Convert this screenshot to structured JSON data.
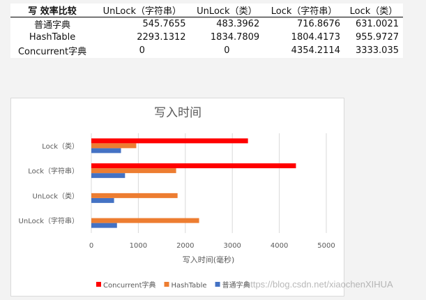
{
  "table": {
    "header": [
      "写 效率比较",
      "UnLock（字符串）",
      "UnLock（类）",
      "Lock（字符串）",
      "Lock（类）"
    ],
    "rows": [
      [
        "普通字典",
        "545.7655",
        "483.3962",
        "716.8676",
        "631.0021"
      ],
      [
        "HashTable",
        "2293.1312",
        "1834.7809",
        "1804.4173",
        "955.9727"
      ],
      [
        "Concurrent字典",
        "0",
        "0",
        "4354.2114",
        "3333.035"
      ]
    ]
  },
  "chart_data": {
    "type": "bar",
    "orientation": "horizontal",
    "title": "写入时间",
    "xlabel": "写入时间(毫秒)",
    "ylabel": "",
    "categories": [
      "UnLock（字符串）",
      "UnLock（类）",
      "Lock（字符串）",
      "Lock（类）"
    ],
    "xlim": [
      0,
      5000
    ],
    "xticks": [
      "0",
      "1000",
      "2000",
      "3000",
      "4000",
      "5000"
    ],
    "grid": true,
    "legend": "bottom",
    "series": [
      {
        "name": "普通字典",
        "color": "#4472c4",
        "values": [
          545.7655,
          483.3962,
          716.8676,
          631.0021
        ]
      },
      {
        "name": "HashTable",
        "color": "#ed7d31",
        "values": [
          2293.1312,
          1834.7809,
          1804.4173,
          955.9727
        ]
      },
      {
        "name": "Concurrent字典",
        "color": "#ff0000",
        "values": [
          0,
          0,
          4354.2114,
          3333.035
        ]
      }
    ]
  },
  "watermark": "https://blog.csdn.net/xiaochenXIHUA"
}
